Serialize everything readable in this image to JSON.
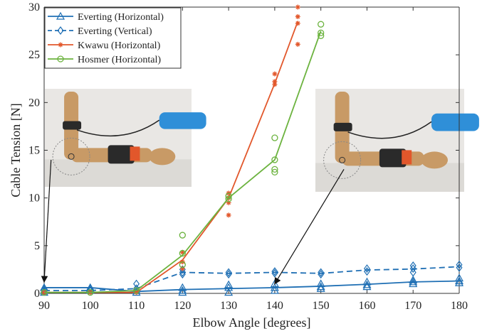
{
  "chart_data": {
    "type": "line",
    "xlabel": "Elbow Angle [degrees]",
    "ylabel": "Cable Tension [N]",
    "xlim": [
      90,
      180
    ],
    "ylim": [
      0,
      30
    ],
    "x_ticks": [
      90,
      100,
      110,
      120,
      130,
      140,
      150,
      160,
      170,
      180
    ],
    "y_ticks": [
      0,
      5,
      10,
      15,
      20,
      25,
      30
    ],
    "grid": false,
    "legend_position": "top-left",
    "series": [
      {
        "name": "Everting (Horizontal)",
        "color": "#1f6fb4",
        "line_style": "solid",
        "marker": "triangle",
        "x": [
          90,
          100,
          110,
          120,
          130,
          140,
          150,
          160,
          170,
          180
        ],
        "y": [
          0.6,
          0.6,
          0.2,
          0.4,
          0.5,
          0.6,
          0.75,
          0.95,
          1.2,
          1.3
        ],
        "samples": [
          [
            90,
            0.6
          ],
          [
            90,
            0.3
          ],
          [
            90,
            0.1
          ],
          [
            100,
            0.6
          ],
          [
            100,
            0.5
          ],
          [
            100,
            0.3
          ],
          [
            110,
            0.3
          ],
          [
            110,
            0.1
          ],
          [
            120,
            0.6
          ],
          [
            120,
            0.3
          ],
          [
            120,
            0.1
          ],
          [
            130,
            0.9
          ],
          [
            130,
            0.6
          ],
          [
            130,
            0.1
          ],
          [
            140,
            1.0
          ],
          [
            140,
            0.6
          ],
          [
            140,
            0.3
          ],
          [
            150,
            1.0
          ],
          [
            150,
            0.7
          ],
          [
            150,
            0.5
          ],
          [
            160,
            1.2
          ],
          [
            160,
            0.9
          ],
          [
            160,
            0.7
          ],
          [
            170,
            1.4
          ],
          [
            170,
            1.2
          ],
          [
            170,
            1.0
          ],
          [
            180,
            1.6
          ],
          [
            180,
            1.3
          ],
          [
            180,
            1.1
          ]
        ]
      },
      {
        "name": "Everting (Vertical)",
        "color": "#1f6fb4",
        "line_style": "dashed",
        "marker": "diamond",
        "x": [
          90,
          100,
          110,
          120,
          130,
          140,
          150,
          160,
          170,
          180
        ],
        "y": [
          0.3,
          0.3,
          0.5,
          2.2,
          2.1,
          2.2,
          2.1,
          2.45,
          2.55,
          2.8
        ],
        "samples": [
          [
            90,
            0.4
          ],
          [
            90,
            0.2
          ],
          [
            100,
            0.5
          ],
          [
            100,
            0.3
          ],
          [
            110,
            1.0
          ],
          [
            110,
            0.5
          ],
          [
            120,
            2.5
          ],
          [
            120,
            2.2
          ],
          [
            120,
            2.0
          ],
          [
            130,
            2.2
          ],
          [
            130,
            2.0
          ],
          [
            140,
            2.3
          ],
          [
            140,
            2.1
          ],
          [
            150,
            2.2
          ],
          [
            150,
            2.0
          ],
          [
            160,
            2.6
          ],
          [
            160,
            2.3
          ],
          [
            170,
            2.9
          ],
          [
            170,
            2.6
          ],
          [
            170,
            2.2
          ],
          [
            180,
            3.0
          ],
          [
            180,
            2.7
          ]
        ]
      },
      {
        "name": "Kwawu (Horizontal)",
        "color": "#e2572b",
        "line_style": "solid",
        "marker": "asterisk",
        "x": [
          90,
          100,
          110,
          120,
          130,
          140,
          145
        ],
        "y": [
          0.1,
          0.1,
          0.1,
          3.5,
          10.0,
          22.0,
          28.5
        ],
        "samples": [
          [
            90,
            0.1
          ],
          [
            100,
            0.1
          ],
          [
            110,
            0.1
          ],
          [
            120,
            4.3
          ],
          [
            120,
            3.3
          ],
          [
            120,
            2.6
          ],
          [
            130,
            10.5
          ],
          [
            130,
            10.0
          ],
          [
            130,
            9.5
          ],
          [
            130,
            8.2
          ],
          [
            140,
            23.0
          ],
          [
            140,
            22.2
          ],
          [
            140,
            21.9
          ],
          [
            145,
            30.0
          ],
          [
            145,
            29.0
          ],
          [
            145,
            28.3
          ],
          [
            145,
            26.1
          ]
        ]
      },
      {
        "name": "Hosmer (Horizontal)",
        "color": "#6cb33f",
        "line_style": "solid",
        "marker": "circle",
        "x": [
          90,
          100,
          110,
          120,
          130,
          140,
          150
        ],
        "y": [
          0.1,
          0.1,
          0.3,
          4.0,
          10.0,
          14.0,
          27.5
        ],
        "samples": [
          [
            90,
            0.1
          ],
          [
            100,
            0.1
          ],
          [
            110,
            0.3
          ],
          [
            120,
            6.1
          ],
          [
            120,
            4.2
          ],
          [
            120,
            3.0
          ],
          [
            130,
            10.2
          ],
          [
            130,
            9.9
          ],
          [
            140,
            16.3
          ],
          [
            140,
            14.0
          ],
          [
            140,
            13.0
          ],
          [
            140,
            12.7
          ],
          [
            150,
            28.2
          ],
          [
            150,
            27.3
          ],
          [
            150,
            27.0
          ]
        ]
      }
    ],
    "annotations": [
      {
        "type": "arrow",
        "from": [
          91.5,
          14.0
        ],
        "to": [
          90,
          1.2
        ]
      },
      {
        "type": "arrow",
        "from": [
          155,
          13.0
        ],
        "to": [
          140,
          1.0
        ]
      }
    ],
    "inset_photos": [
      {
        "near_x": 92,
        "near_y": 13.5
      },
      {
        "near_x": 155,
        "near_y": 12.5
      }
    ]
  },
  "theme": {
    "axis_color": "#333333",
    "photo_background": "#e9e7e4",
    "prosthesis_skin": "#c89a66",
    "prosthesis_dark": "#2a2a2a",
    "prosthesis_blue": "#2f8fd8"
  }
}
